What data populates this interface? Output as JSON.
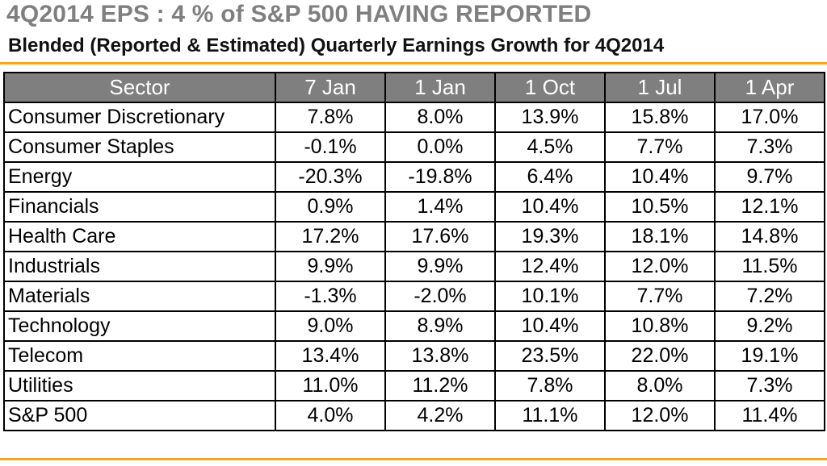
{
  "header": {
    "title": "4Q2014 EPS : 4 % of S&P 500 HAVING REPORTED",
    "subtitle": "Blended (Reported & Estimated) Quarterly Earnings Growth for 4Q2014"
  },
  "colors": {
    "accent_rule": "#f5a623",
    "header_fill": "#7f7f7f",
    "title_gray": "#7f7f7f"
  },
  "chart_data": {
    "type": "table",
    "title": "4Q2014 EPS : 4 % of S&P 500 HAVING REPORTED",
    "subtitle": "Blended (Reported & Estimated) Quarterly Earnings Growth for 4Q2014",
    "columns": [
      "Sector",
      "7 Jan",
      "1 Jan",
      "1 Oct",
      "1 Jul",
      "1 Apr"
    ],
    "rows": [
      [
        "Consumer Discretionary",
        "7.8%",
        "8.0%",
        "13.9%",
        "15.8%",
        "17.0%"
      ],
      [
        "Consumer Staples",
        "-0.1%",
        "0.0%",
        "4.5%",
        "7.7%",
        "7.3%"
      ],
      [
        "Energy",
        "-20.3%",
        "-19.8%",
        "6.4%",
        "10.4%",
        "9.7%"
      ],
      [
        "Financials",
        "0.9%",
        "1.4%",
        "10.4%",
        "10.5%",
        "12.1%"
      ],
      [
        "Health Care",
        "17.2%",
        "17.6%",
        "19.3%",
        "18.1%",
        "14.8%"
      ],
      [
        "Industrials",
        "9.9%",
        "9.9%",
        "12.4%",
        "12.0%",
        "11.5%"
      ],
      [
        "Materials",
        "-1.3%",
        "-2.0%",
        "10.1%",
        "7.7%",
        "7.2%"
      ],
      [
        "Technology",
        "9.0%",
        "8.9%",
        "10.4%",
        "10.8%",
        "9.2%"
      ],
      [
        "Telecom",
        "13.4%",
        "13.8%",
        "23.5%",
        "22.0%",
        "19.1%"
      ],
      [
        "Utilities",
        "11.0%",
        "11.2%",
        "7.8%",
        "8.0%",
        "7.3%"
      ],
      [
        "S&P 500",
        "4.0%",
        "4.2%",
        "11.1%",
        "12.0%",
        "11.4%"
      ]
    ]
  }
}
